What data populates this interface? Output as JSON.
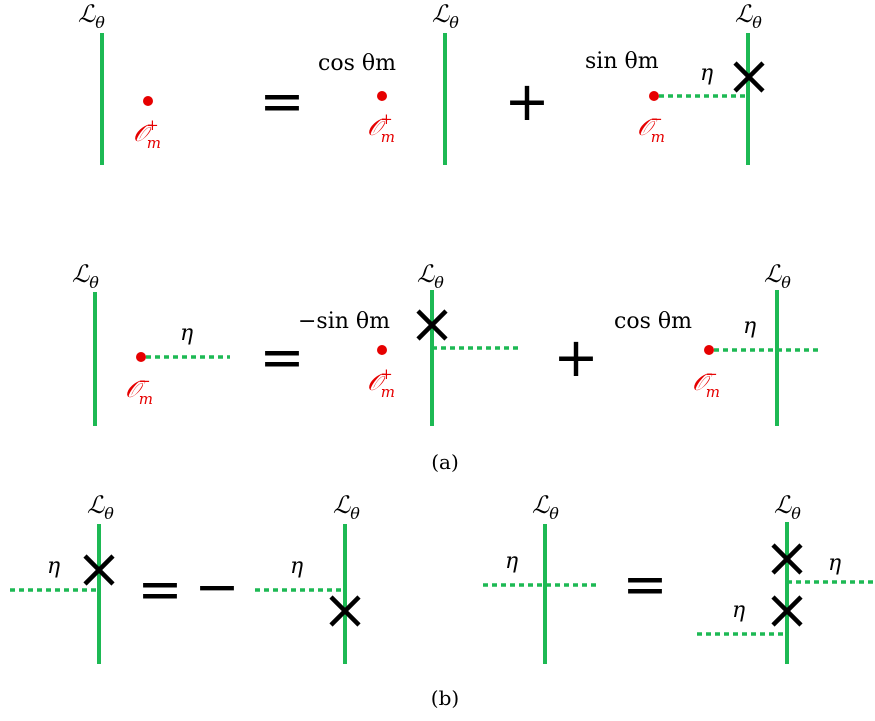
{
  "colors": {
    "line": "#1db954",
    "operator": "#e60000",
    "ink": "#000000",
    "background": "#ffffff"
  },
  "labels": {
    "line_symbol": "ℒ",
    "line_subscript": "θ",
    "op_symbol": "𝒪",
    "op_sub": "m",
    "op_plus": "+",
    "op_minus": "−",
    "eta": "η",
    "coef_cos": "cos θm",
    "coef_sin": "sin θm",
    "coef_neg_sin": "−sin θm",
    "equals": "=",
    "plus": "+",
    "minus": "−",
    "cross": "✕",
    "caption_a": "(a)",
    "caption_b": "(b)"
  }
}
